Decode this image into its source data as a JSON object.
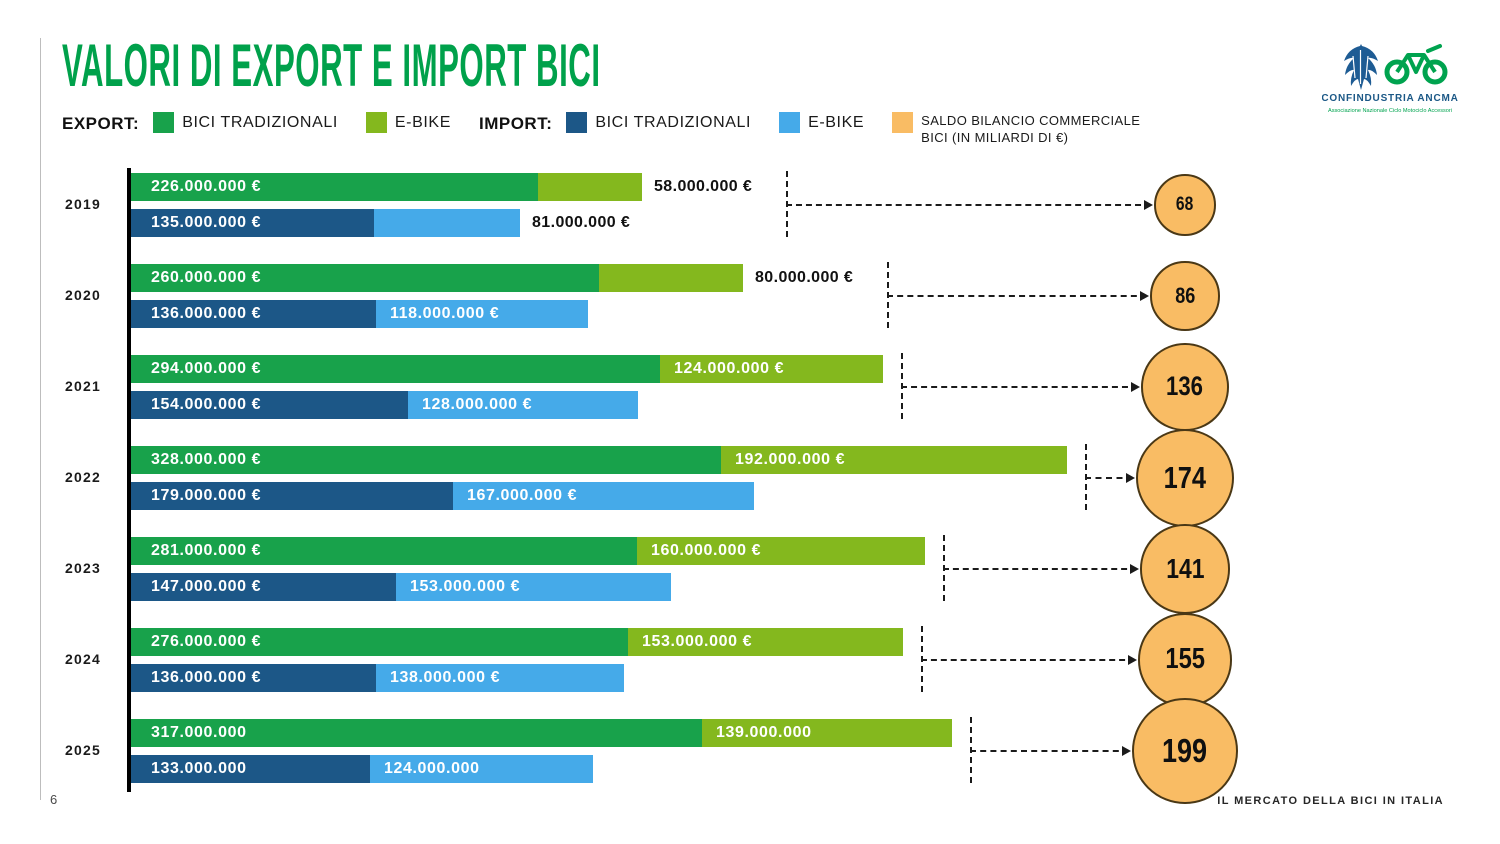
{
  "title": "VALORI DI EXPORT E IMPORT BICI",
  "page_number": "6",
  "footer_title": "IL MERCATO DELLA BICI IN ITALIA",
  "logo": {
    "org": "CONFINDUSTRIA ANCMA",
    "subtitle": "Associazione Nazionale Ciclo Motociclo Accessori"
  },
  "colors": {
    "title_green": "#00A14B",
    "export_traditional": "#18A24B",
    "export_ebike": "#84B81E",
    "import_traditional": "#1C5787",
    "import_ebike": "#45AAE9",
    "saldo_fill": "#F9BC64",
    "saldo_stroke": "#4a3816",
    "logo_blue": "#1E5C94",
    "logo_green": "#00A34F"
  },
  "legend": {
    "export_header": "EXPORT:",
    "import_header": "IMPORT:",
    "export_traditional_label": "BICI TRADIZIONALI",
    "export_ebike_label": "E-BIKE",
    "import_traditional_label": "BICI TRADIZIONALI",
    "import_ebike_label": "E-BIKE",
    "saldo_label_line1": "SALDO BILANCIO COMMERCIALE",
    "saldo_label_line2": "BICI (IN MILIARDI DI €)"
  },
  "chart_data": {
    "type": "bar",
    "orientation": "horizontal",
    "stacked": true,
    "title": "VALORI DI EXPORT E IMPORT BICI",
    "unit": "millions of €",
    "grid": false,
    "legend_position": "top",
    "categories": [
      "2019",
      "2020",
      "2021",
      "2022",
      "2023",
      "2024",
      "2025"
    ],
    "series": [
      {
        "name": "EXPORT BICI TRADIZIONALI",
        "color_key": "export_traditional",
        "values": [
          226,
          260,
          294,
          328,
          281,
          276,
          317
        ],
        "labels": [
          "226.000.000 €",
          "260.000.000 €",
          "294.000.000 €",
          "328.000.000 €",
          "281.000.000 €",
          "276.000.000 €",
          "317.000.000"
        ]
      },
      {
        "name": "EXPORT E-BIKE",
        "color_key": "export_ebike",
        "values": [
          58,
          80,
          124,
          192,
          160,
          153,
          139
        ],
        "labels": [
          "58.000.000 €",
          "80.000.000 €",
          "124.000.000 €",
          "192.000.000 €",
          "160.000.000 €",
          "153.000.000 €",
          "139.000.000"
        ]
      },
      {
        "name": "IMPORT BICI TRADIZIONALI",
        "color_key": "import_traditional",
        "values": [
          135,
          136,
          154,
          179,
          147,
          136,
          133
        ],
        "labels": [
          "135.000.000 €",
          "136.000.000 €",
          "154.000.000 €",
          "179.000.000 €",
          "147.000.000 €",
          "136.000.000 €",
          "133.000.000"
        ]
      },
      {
        "name": "IMPORT E-BIKE",
        "color_key": "import_ebike",
        "values": [
          81,
          118,
          128,
          167,
          153,
          138,
          124
        ],
        "labels": [
          "81.000.000 €",
          "118.000.000 €",
          "128.000.000 €",
          "167.000.000 €",
          "153.000.000 €",
          "138.000.000 €",
          "124.000.000"
        ]
      }
    ],
    "saldo": {
      "name": "SALDO BILANCIO COMMERCIALE BICI (IN MILIARDI DI €)",
      "values": [
        68,
        86,
        136,
        174,
        141,
        155,
        199
      ]
    }
  }
}
